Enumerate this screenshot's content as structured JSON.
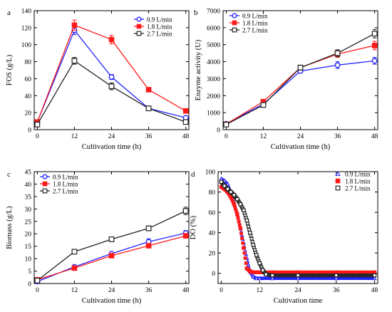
{
  "colors": {
    "blue": "#1f1fff",
    "red": "#ff1a1a",
    "black": "#222222"
  },
  "chart_data": [
    {
      "type": "line",
      "panel_label": "a",
      "xlabel": "Cultivation time (h)",
      "ylabel": "FOS (g/L)",
      "xlim": [
        -1,
        49
      ],
      "ylim": [
        0,
        140
      ],
      "xticks": [
        0,
        12,
        24,
        36,
        48
      ],
      "yticks": [
        0,
        20,
        40,
        60,
        80,
        100,
        120,
        140
      ],
      "legend_position": "top-right",
      "x": [
        0,
        12,
        24,
        36,
        48
      ],
      "series": [
        {
          "name": "0.9 L/min",
          "color": "#1f1fff",
          "marker": "circle-open",
          "values": [
            9,
            117,
            62,
            25,
            14
          ],
          "errors": [
            1,
            5,
            3,
            1.5,
            1
          ]
        },
        {
          "name": "1.8 L/min",
          "color": "#ff1a1a",
          "marker": "square-filled",
          "values": [
            9,
            123,
            106,
            47,
            22
          ],
          "errors": [
            1,
            6,
            5,
            2,
            1
          ]
        },
        {
          "name": "2.7 L/min",
          "color": "#222222",
          "marker": "square-open",
          "values": [
            6,
            81,
            51,
            25,
            9
          ],
          "errors": [
            1,
            4,
            4,
            2,
            1
          ]
        }
      ]
    },
    {
      "type": "line",
      "panel_label": "b",
      "xlabel": "Cultivation time (h)",
      "ylabel": "Enzyme activity (U)",
      "xlim": [
        -1,
        49
      ],
      "ylim": [
        0,
        7000
      ],
      "xticks": [
        0,
        12,
        24,
        36,
        48
      ],
      "yticks": [
        0,
        1000,
        2000,
        3000,
        4000,
        5000,
        6000,
        7000
      ],
      "legend_position": "top-left",
      "x": [
        0,
        12,
        24,
        36,
        48
      ],
      "series": [
        {
          "name": "0.9 L/min",
          "color": "#1f1fff",
          "marker": "circle-open",
          "values": [
            350,
            1500,
            3450,
            3800,
            4050
          ],
          "errors": [
            30,
            60,
            120,
            200,
            200
          ]
        },
        {
          "name": "1.8 L/min",
          "color": "#ff1a1a",
          "marker": "square-filled",
          "values": [
            320,
            1650,
            3650,
            4450,
            4950
          ],
          "errors": [
            30,
            60,
            120,
            200,
            250
          ]
        },
        {
          "name": "2.7 L/min",
          "color": "#222222",
          "marker": "square-open",
          "values": [
            300,
            1450,
            3650,
            4500,
            5650
          ],
          "errors": [
            30,
            60,
            150,
            200,
            250
          ]
        }
      ]
    },
    {
      "type": "line",
      "panel_label": "c",
      "xlabel": "Cultivation time (h)",
      "ylabel": "Biomass (g/L)",
      "xlim": [
        -1,
        49
      ],
      "ylim": [
        0,
        45
      ],
      "xticks": [
        0,
        12,
        24,
        36,
        48
      ],
      "yticks": [
        0,
        5,
        10,
        15,
        20,
        25,
        30,
        35,
        40,
        45
      ],
      "legend_position": "top-left",
      "x": [
        0,
        12,
        24,
        36,
        48
      ],
      "series": [
        {
          "name": "0.9 L/min",
          "color": "#1f1fff",
          "marker": "circle-open",
          "values": [
            0.8,
            6.7,
            12,
            16.8,
            20.3
          ],
          "errors": [
            0.3,
            0.5,
            0.5,
            1.2,
            1
          ]
        },
        {
          "name": "1.8 L/min",
          "color": "#ff1a1a",
          "marker": "square-filled",
          "values": [
            1.5,
            6.2,
            11.2,
            15.2,
            19.2
          ],
          "errors": [
            0.3,
            0.5,
            0.5,
            0.8,
            0.8
          ]
        },
        {
          "name": "2.7 L/min",
          "color": "#222222",
          "marker": "square-open",
          "values": [
            1.2,
            12.8,
            17.8,
            22.2,
            29.2
          ],
          "errors": [
            0.3,
            0.6,
            0.8,
            1,
            1.5
          ]
        }
      ]
    },
    {
      "type": "scatter",
      "panel_label": "d",
      "xlabel": "Cultivation time",
      "ylabel": "DO (%)",
      "xlim": [
        -1,
        49
      ],
      "ylim": [
        -10,
        100
      ],
      "xticks": [
        0,
        12,
        24,
        36,
        48
      ],
      "yticks": [
        0,
        20,
        40,
        60,
        80,
        100
      ],
      "legend_position": "top-right",
      "series": [
        {
          "name": "0.9 L/min",
          "color": "#1f1fff",
          "marker": "triangle-open",
          "x": [
            0,
            1,
            2,
            3,
            4,
            5,
            6,
            7,
            8,
            9,
            10,
            11,
            12,
            16,
            24,
            36,
            48
          ],
          "values": [
            93,
            91,
            88,
            80,
            70,
            58,
            45,
            30,
            15,
            2,
            -3,
            -5,
            -5,
            -5,
            -5,
            -5,
            -5
          ]
        },
        {
          "name": "1.8 L/min",
          "color": "#ff1a1a",
          "marker": "square-filled",
          "x": [
            0,
            1,
            2,
            3,
            4,
            5,
            6,
            7,
            8,
            9,
            10,
            11,
            12,
            16,
            24,
            36,
            48
          ],
          "values": [
            85,
            83,
            80,
            75,
            68,
            58,
            44,
            25,
            5,
            2,
            1,
            1,
            1,
            1,
            1,
            1,
            1
          ]
        },
        {
          "name": "2.7 L/min",
          "color": "#222222",
          "marker": "square-open",
          "x": [
            0,
            1,
            2,
            3,
            4,
            5,
            6,
            7,
            8,
            9,
            10,
            11,
            12,
            13,
            14,
            16,
            24,
            36,
            48
          ],
          "values": [
            90,
            86,
            83,
            80,
            77,
            73,
            68,
            62,
            52,
            40,
            28,
            18,
            10,
            3,
            -1,
            -2,
            -2,
            -2,
            -2
          ]
        }
      ]
    }
  ]
}
